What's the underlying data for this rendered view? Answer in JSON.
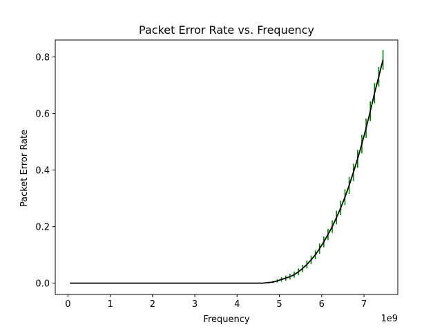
{
  "chart_data": {
    "type": "line",
    "title": "Packet Error Rate vs. Frequency",
    "xlabel": "Frequency",
    "ylabel": "Packet Error Rate",
    "x_offset_label": "1e9",
    "xlim": [
      -0.3,
      7.8
    ],
    "ylim": [
      -0.04,
      0.86
    ],
    "x_ticks": [
      0,
      1,
      2,
      3,
      4,
      5,
      6,
      7
    ],
    "x_tick_labels": [
      "0",
      "1",
      "2",
      "3",
      "4",
      "5",
      "6",
      "7"
    ],
    "y_ticks": [
      0.0,
      0.2,
      0.4,
      0.6,
      0.8
    ],
    "y_tick_labels": [
      "0.0",
      "0.2",
      "0.4",
      "0.6",
      "0.8"
    ],
    "grid": false,
    "line_color": "#000000",
    "errorbar_color": "#008000",
    "series": [
      {
        "x": [
          0.05,
          1.0,
          2.0,
          3.0,
          4.0,
          4.6,
          4.75,
          4.85,
          4.95,
          5.05,
          5.15,
          5.25,
          5.35,
          5.45,
          5.55,
          5.65,
          5.75,
          5.85,
          5.95,
          6.05,
          6.15,
          6.25,
          6.35,
          6.45,
          6.55,
          6.65,
          6.75,
          6.85,
          6.95,
          7.05,
          7.15,
          7.25,
          7.35,
          7.45
        ],
        "y": [
          0.0,
          0.0,
          0.0,
          0.0,
          0.0,
          0.0,
          0.002,
          0.004,
          0.008,
          0.013,
          0.018,
          0.023,
          0.03,
          0.04,
          0.052,
          0.066,
          0.082,
          0.1,
          0.122,
          0.146,
          0.172,
          0.2,
          0.232,
          0.266,
          0.304,
          0.346,
          0.392,
          0.44,
          0.492,
          0.548,
          0.608,
          0.672,
          0.73,
          0.79
        ],
        "error": [
          0,
          0,
          0,
          0,
          0,
          0,
          0.003,
          0.004,
          0.006,
          0.008,
          0.009,
          0.01,
          0.011,
          0.012,
          0.013,
          0.014,
          0.015,
          0.016,
          0.018,
          0.019,
          0.02,
          0.022,
          0.024,
          0.026,
          0.028,
          0.03,
          0.031,
          0.032,
          0.033,
          0.034,
          0.035,
          0.036,
          0.035,
          0.035
        ]
      }
    ]
  }
}
